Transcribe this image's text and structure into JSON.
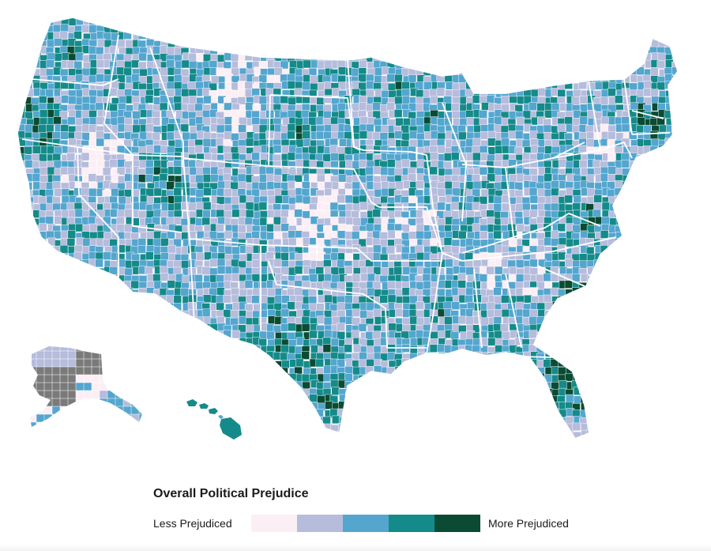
{
  "legend": {
    "title": "Overall Political Prejudice",
    "low_label": "Less Prejudiced",
    "high_label": "More Prejudiced",
    "colors": [
      "#fbeff5",
      "#b6bcdc",
      "#54a6cf",
      "#148b8a",
      "#0b4b33"
    ]
  },
  "map": {
    "no_data_color": "#7a7a7a",
    "border_color": "#ffffff"
  }
}
